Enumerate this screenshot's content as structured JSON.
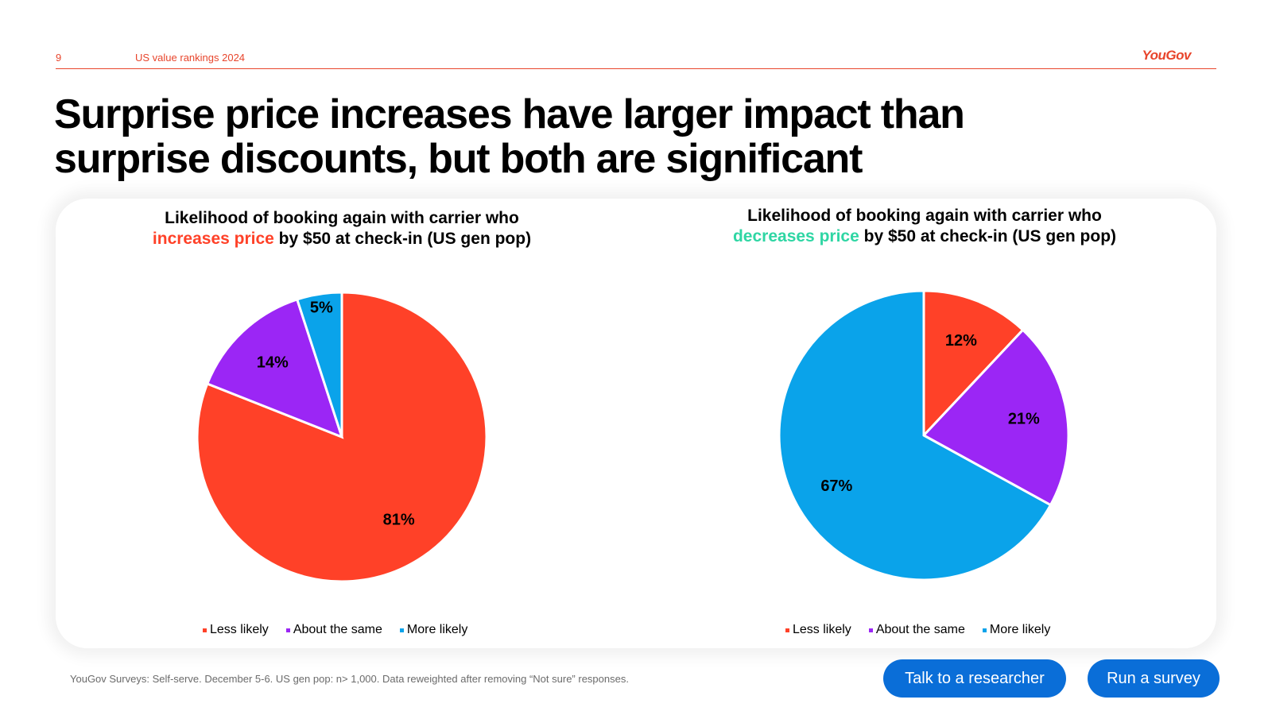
{
  "header": {
    "page_number": "9",
    "report_title": "US value rankings 2024",
    "logo": "YouGov"
  },
  "title_line1": "Surprise price increases have larger impact than",
  "title_line2": "surprise discounts, but both are significant",
  "colors": {
    "brand": "#e8452c",
    "less_likely": "#ff4128",
    "about_same": "#9b26f5",
    "more_likely": "#0aa3ea",
    "decrease_highlight": "#2fd6a4",
    "cta": "#0a6ed8"
  },
  "charts": [
    {
      "title_line1": "Likelihood of booking again with carrier who",
      "title_highlight": "increases price",
      "title_rest": " by $50 at check-in (US gen pop)"
    },
    {
      "title_line1": "Likelihood of booking again with carrier who",
      "title_highlight": "decreases price",
      "title_rest": " by $50 at check-in (US gen pop)"
    }
  ],
  "chart_data": [
    {
      "type": "pie",
      "title": "Likelihood of booking again with carrier who increases price by $50 at check-in (US gen pop)",
      "categories": [
        "Less likely",
        "About the same",
        "More likely"
      ],
      "values": [
        81,
        14,
        5
      ],
      "labels": [
        "81%",
        "14%",
        "5%"
      ],
      "legend_position": "bottom"
    },
    {
      "type": "pie",
      "title": "Likelihood of booking again with carrier who decreases price by $50 at check-in (US gen pop)",
      "categories": [
        "Less likely",
        "About the same",
        "More likely"
      ],
      "values": [
        12,
        21,
        67
      ],
      "labels": [
        "12%",
        "21%",
        "67%"
      ],
      "legend_position": "bottom"
    }
  ],
  "footnote": "YouGov Surveys: Self-serve. December 5-6. US gen pop: n> 1,000. Data reweighted after removing “Not sure” responses.",
  "buttons": {
    "researcher": "Talk to a researcher",
    "survey": "Run a survey"
  }
}
